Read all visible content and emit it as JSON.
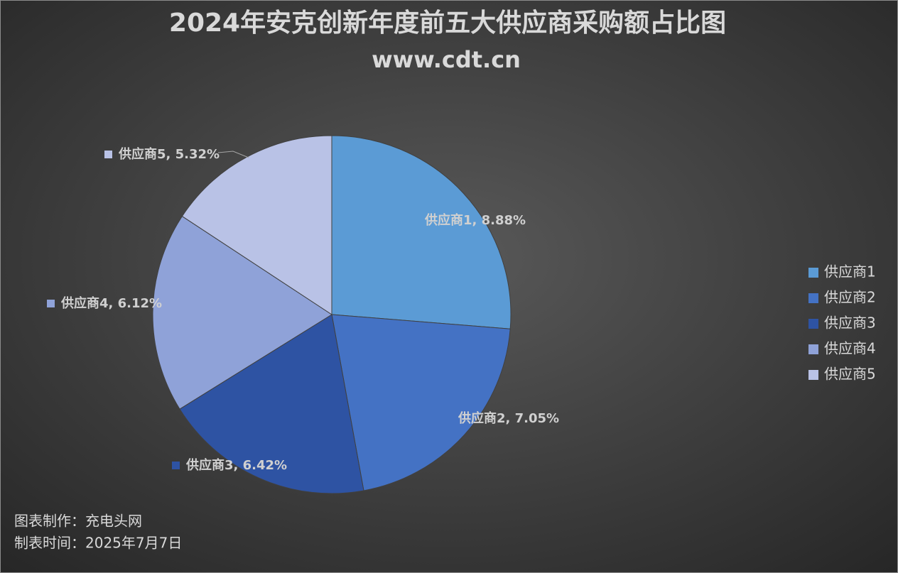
{
  "chart_data": {
    "type": "pie",
    "title": "2024年安克创新年度前五大供应商采购额占比图",
    "subtitle": "www.cdt.cn",
    "categories": [
      "供应商1",
      "供应商2",
      "供应商3",
      "供应商4",
      "供应商5"
    ],
    "values": [
      8.88,
      7.05,
      6.42,
      6.12,
      5.32
    ],
    "value_labels": [
      "供应商1, 8.88%",
      "供应商2, 7.05%",
      "供应商3, 6.42%",
      "供应商4, 6.12%",
      "供应商5, 5.32%"
    ],
    "colors": [
      "#5b9bd5",
      "#4472c4",
      "#2e53a3",
      "#8fa2d8",
      "#b9c2e6"
    ],
    "legend": "right",
    "footnotes": [
      "图表制作：充电头网",
      "制表时间：2025年7月7日"
    ]
  }
}
